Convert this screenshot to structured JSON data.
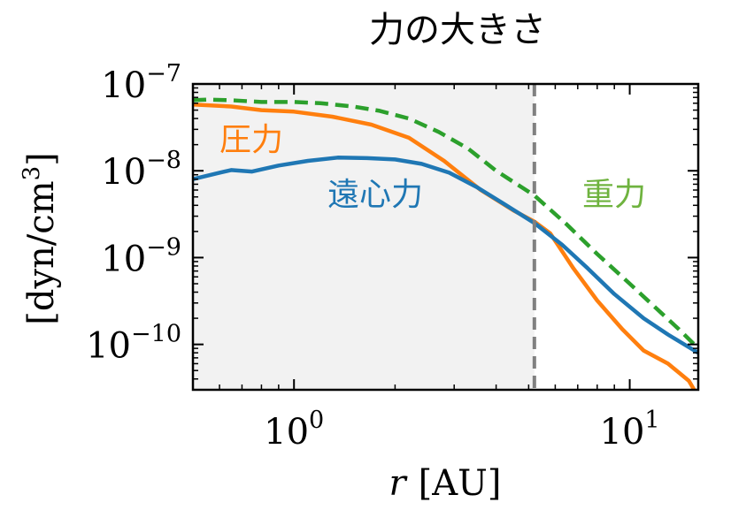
{
  "chart_data": {
    "type": "line",
    "title": "力の大きさ",
    "xlabel_var": "r",
    "xlabel_unit": "[AU]",
    "ylabel_base": "[dyn/cm",
    "ylabel_exp": "3",
    "ylabel_close": "]",
    "xscale": "log",
    "yscale": "log",
    "xlim": [
      0.5,
      16
    ],
    "ylim": [
      3e-11,
      1e-07
    ],
    "x_ticks": [
      {
        "value": 1,
        "base": "10",
        "exp": "0"
      },
      {
        "value": 10,
        "base": "10",
        "exp": "1"
      }
    ],
    "y_ticks": [
      {
        "value": 1e-07,
        "base": "10",
        "exp": "−7"
      },
      {
        "value": 1e-08,
        "base": "10",
        "exp": "−8"
      },
      {
        "value": 1e-09,
        "base": "10",
        "exp": "−9"
      },
      {
        "value": 1e-10,
        "base": "10",
        "exp": "−10"
      }
    ],
    "shaded_region": {
      "x_from": 0.5,
      "x_to": 5.2,
      "color": "#f2f2f2"
    },
    "vline": {
      "x": 5.2,
      "color": "#808080",
      "style": "dashed"
    },
    "grid": false,
    "series": [
      {
        "name": "圧力",
        "color": "#ff7f0e",
        "style": "solid",
        "x": [
          0.5,
          0.65,
          0.8,
          1.0,
          1.3,
          1.7,
          2.2,
          2.8,
          3.6,
          4.5,
          5.2,
          5.8,
          6.8,
          8.0,
          9.5,
          11,
          13,
          15,
          16
        ],
        "y": [
          5.8e-08,
          5.5e-08,
          5e-08,
          4.8e-08,
          4.2e-08,
          3.4e-08,
          2.4e-08,
          1.3e-08,
          6e-09,
          3.5e-09,
          2.6e-09,
          1.9e-09,
          7.5e-10,
          3.2e-10,
          1.5e-10,
          8.5e-11,
          6e-11,
          3.8e-11,
          2.5e-11
        ],
        "label_color": "#ff7f0e"
      },
      {
        "name": "遠心力",
        "color": "#1f77b4",
        "style": "solid",
        "x": [
          0.5,
          0.6,
          0.65,
          0.75,
          0.9,
          1.1,
          1.35,
          1.65,
          2.0,
          2.4,
          2.9,
          3.5,
          4.2,
          5.2,
          6.3,
          7.5,
          9.0,
          11,
          13,
          16
        ],
        "y": [
          8e-09,
          9.5e-09,
          1.02e-08,
          9.8e-09,
          1.15e-08,
          1.3e-08,
          1.42e-08,
          1.4e-08,
          1.35e-08,
          1.2e-08,
          9.5e-09,
          6.5e-09,
          4.2e-09,
          2.5e-09,
          1.4e-09,
          7.5e-10,
          3.8e-10,
          2e-10,
          1.3e-10,
          8e-11
        ],
        "label_color": "#1f77b4"
      },
      {
        "name": "重力",
        "color": "#2ca02c",
        "style": "dashed",
        "x": [
          0.5,
          0.55,
          0.65,
          0.8,
          1.0,
          1.2,
          1.5,
          1.8,
          2.2,
          2.7,
          3.3,
          4.0,
          5.2,
          6.5,
          8.0,
          10,
          12,
          14,
          16
        ],
        "y": [
          6.5e-08,
          6.6e-08,
          6.5e-08,
          6.2e-08,
          6.2e-08,
          6e-08,
          5.5e-08,
          4.9e-08,
          4e-08,
          2.8e-08,
          1.8e-08,
          1e-08,
          5.2e-09,
          2.4e-09,
          1.1e-09,
          5e-10,
          2.6e-10,
          1.5e-10,
          9e-11
        ],
        "label_color": "#6fb33f"
      }
    ]
  }
}
